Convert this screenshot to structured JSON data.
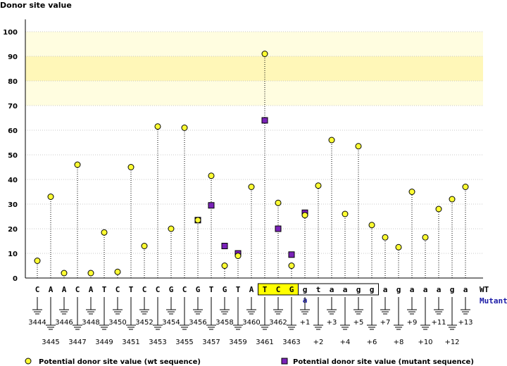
{
  "chart_data": {
    "type": "scatter",
    "title": "",
    "ylabel": "Donor site value",
    "ylim": [
      0,
      105
    ],
    "yticks": [
      0,
      10,
      20,
      30,
      40,
      50,
      60,
      70,
      80,
      90,
      100
    ],
    "threshold_band": [
      70,
      100
    ],
    "highlight_band": [
      80,
      90
    ],
    "colors": {
      "band": "#fffde0",
      "band_strong": "#fff7b8",
      "wt_marker": "#ffff33",
      "mutant_marker": "#7a22b8",
      "exon_box": "#ffff00",
      "mutant_text": "#1a1aa6"
    },
    "sequence_wt": [
      "C",
      "A",
      "A",
      "C",
      "A",
      "T",
      "C",
      "T",
      "C",
      "C",
      "G",
      "C",
      "G",
      "T",
      "G",
      "T",
      "A",
      "T",
      "C",
      "G",
      "g",
      "t",
      "a",
      "a",
      "g",
      "g",
      "a",
      "g",
      "a",
      "a",
      "a",
      "g",
      "a"
    ],
    "mutant_base": {
      "index": 20,
      "base": "a"
    },
    "exon_box_range": [
      17,
      19
    ],
    "intron_box_range": [
      20,
      25
    ],
    "wt_label": "WT",
    "mutant_label": "Mutant",
    "positions_odd_row": [
      "3445",
      "3447",
      "3449",
      "3451",
      "3453",
      "3455",
      "3457",
      "3459",
      "3461",
      "3463",
      "+2",
      "+4",
      "+6",
      "+8",
      "+10",
      "+12"
    ],
    "positions_even_row": [
      "3444",
      "3446",
      "3448",
      "3450",
      "3452",
      "3454",
      "3456",
      "3458",
      "3460",
      "3462",
      "+1",
      "+3",
      "+5",
      "+7",
      "+9",
      "+11",
      "+13"
    ],
    "series": [
      {
        "name": "Potential donor site value (wt sequence)",
        "values": [
          7,
          33,
          2,
          46,
          2,
          18.5,
          2.5,
          45,
          13,
          61.5,
          20,
          61,
          23.5,
          41.5,
          5,
          9,
          37,
          91,
          30.5,
          5,
          25.5,
          37.5,
          56,
          26,
          53.5,
          21.5,
          16.5,
          12.5,
          35,
          16.5,
          28,
          32,
          37
        ]
      },
      {
        "name": "Potential donor site value (mutant sequence)",
        "points": [
          {
            "i": 12,
            "value": 23.5
          },
          {
            "i": 13,
            "value": 29.5
          },
          {
            "i": 14,
            "value": 13
          },
          {
            "i": 15,
            "value": 10
          },
          {
            "i": 17,
            "value": 64
          },
          {
            "i": 18,
            "value": 20
          },
          {
            "i": 19,
            "value": 9.5
          },
          {
            "i": 20,
            "value": 26.5
          }
        ]
      }
    ]
  }
}
